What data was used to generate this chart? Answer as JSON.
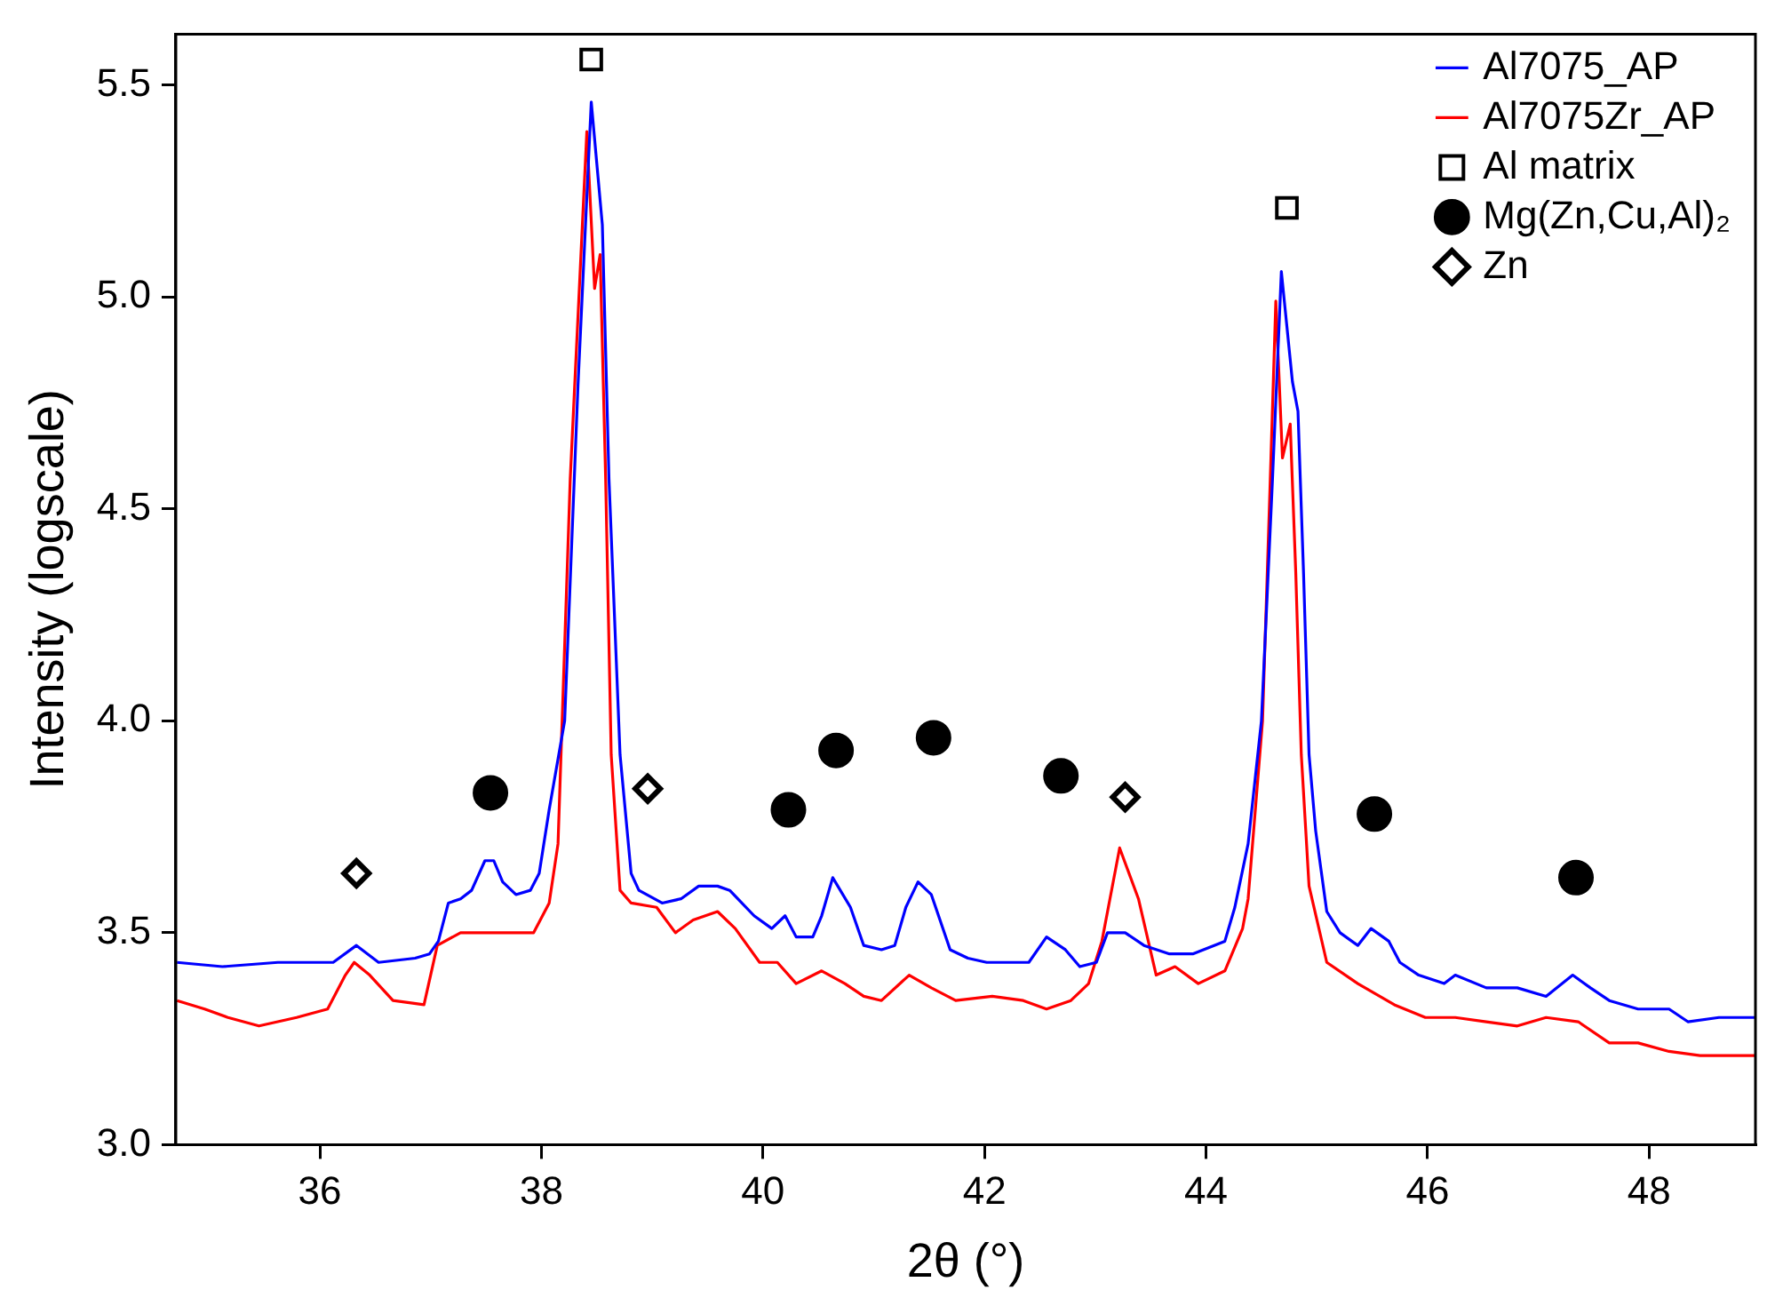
{
  "chart_data": {
    "type": "line",
    "xlabel": "2θ (°)",
    "ylabel": "Intensity (logscale)",
    "xlim": [
      34.7,
      48.96
    ],
    "xticks": [
      36,
      38,
      40,
      42,
      44,
      46,
      48
    ],
    "ylim": [
      3.0,
      5.62
    ],
    "yticks": [
      {
        "value": 3,
        "label": "3.0"
      },
      {
        "value": 3.5,
        "label": "3.5"
      },
      {
        "value": 4,
        "label": "4.0"
      },
      {
        "value": 4.5,
        "label": "4.5"
      },
      {
        "value": 5,
        "label": "5.0"
      },
      {
        "value": 5.5,
        "label": "5.5"
      }
    ],
    "grid": false,
    "legend": "top right",
    "line_style": "solid",
    "series": [
      {
        "name": "Al7075_AP",
        "color": "#0000ff",
        "marker": "none",
        "x": [
          34.71,
          35.12,
          35.62,
          36.12,
          36.33,
          36.53,
          36.86,
          36.99,
          37.07,
          37.16,
          37.27,
          37.37,
          37.49,
          37.57,
          37.65,
          37.77,
          37.9,
          37.98,
          38.07,
          38.21,
          38.33,
          38.45,
          38.55,
          38.61,
          38.71,
          38.81,
          38.88,
          39.09,
          39.26,
          39.42,
          39.59,
          39.7,
          39.92,
          40.08,
          40.2,
          40.3,
          40.45,
          40.53,
          40.63,
          40.79,
          40.91,
          41.07,
          41.19,
          41.29,
          41.4,
          41.52,
          41.69,
          41.85,
          42.02,
          42.18,
          42.4,
          42.56,
          42.73,
          42.86,
          43.01,
          43.11,
          43.27,
          43.44,
          43.67,
          43.88,
          44.17,
          44.26,
          44.38,
          44.5,
          44.6,
          44.68,
          44.78,
          44.83,
          44.88,
          44.93,
          44.99,
          45.09,
          45.21,
          45.37,
          45.49,
          45.65,
          45.75,
          45.92,
          46.15,
          46.25,
          46.53,
          46.81,
          47.07,
          47.31,
          47.47,
          47.64,
          47.9,
          48.18,
          48.35,
          48.63,
          48.79,
          48.96
        ],
        "values": [
          3.43,
          3.42,
          3.43,
          3.43,
          3.47,
          3.43,
          3.44,
          3.45,
          3.48,
          3.57,
          3.58,
          3.6,
          3.67,
          3.67,
          3.62,
          3.59,
          3.6,
          3.64,
          3.79,
          4.0,
          4.79,
          5.46,
          5.17,
          4.57,
          3.92,
          3.64,
          3.6,
          3.57,
          3.58,
          3.61,
          3.61,
          3.6,
          3.54,
          3.51,
          3.54,
          3.49,
          3.49,
          3.54,
          3.63,
          3.56,
          3.47,
          3.46,
          3.47,
          3.56,
          3.62,
          3.59,
          3.46,
          3.44,
          3.43,
          3.43,
          3.43,
          3.49,
          3.46,
          3.42,
          3.43,
          3.5,
          3.5,
          3.47,
          3.45,
          3.45,
          3.48,
          3.56,
          3.71,
          4.0,
          4.57,
          5.06,
          4.8,
          4.73,
          4.35,
          3.92,
          3.74,
          3.55,
          3.5,
          3.47,
          3.51,
          3.48,
          3.43,
          3.4,
          3.38,
          3.4,
          3.37,
          3.37,
          3.35,
          3.4,
          3.37,
          3.34,
          3.32,
          3.32,
          3.29,
          3.3,
          3.3,
          3.3
        ]
      },
      {
        "name": "Al7075Zr_AP",
        "color": "#ff0000",
        "marker": "none",
        "x": [
          34.71,
          34.96,
          35.17,
          35.45,
          35.79,
          36.07,
          36.23,
          36.31,
          36.45,
          36.66,
          36.94,
          37.06,
          37.27,
          37.65,
          37.93,
          38.07,
          38.15,
          38.26,
          38.41,
          38.48,
          38.53,
          38.58,
          38.63,
          38.71,
          38.81,
          39.04,
          39.21,
          39.37,
          39.59,
          39.75,
          39.97,
          40.13,
          40.3,
          40.53,
          40.74,
          40.91,
          41.07,
          41.32,
          41.52,
          41.74,
          42.07,
          42.35,
          42.56,
          42.78,
          42.94,
          43.06,
          43.22,
          43.39,
          43.55,
          43.72,
          43.93,
          44.17,
          44.33,
          44.38,
          44.51,
          44.58,
          44.63,
          44.69,
          44.76,
          44.81,
          44.86,
          44.93,
          45.09,
          45.37,
          45.7,
          45.98,
          46.25,
          46.53,
          46.81,
          47.07,
          47.36,
          47.64,
          47.9,
          48.18,
          48.46,
          48.73,
          48.96
        ],
        "values": [
          3.34,
          3.32,
          3.3,
          3.28,
          3.3,
          3.32,
          3.4,
          3.43,
          3.4,
          3.34,
          3.33,
          3.47,
          3.5,
          3.5,
          3.5,
          3.57,
          3.71,
          4.57,
          5.39,
          5.02,
          5.1,
          4.57,
          3.92,
          3.6,
          3.57,
          3.56,
          3.5,
          3.53,
          3.55,
          3.51,
          3.43,
          3.43,
          3.38,
          3.41,
          3.38,
          3.35,
          3.34,
          3.4,
          3.37,
          3.34,
          3.35,
          3.34,
          3.32,
          3.34,
          3.38,
          3.48,
          3.7,
          3.58,
          3.4,
          3.42,
          3.38,
          3.41,
          3.51,
          3.58,
          4.0,
          4.57,
          4.99,
          4.62,
          4.7,
          4.35,
          3.92,
          3.61,
          3.43,
          3.38,
          3.33,
          3.3,
          3.3,
          3.29,
          3.28,
          3.3,
          3.29,
          3.24,
          3.24,
          3.22,
          3.21,
          3.21,
          3.21
        ]
      },
      {
        "name": "Al matrix",
        "type": "scatter",
        "color": "#000000",
        "marker": "square",
        "x": [
          38.45,
          44.73
        ],
        "values": [
          5.56,
          5.21
        ]
      },
      {
        "name": "Mg(Zn,Cu,Al)₂",
        "type": "scatter",
        "color": "#000000",
        "marker": "circle",
        "x": [
          37.54,
          40.23,
          40.66,
          41.54,
          42.69,
          45.52,
          47.34
        ],
        "values": [
          3.83,
          3.79,
          3.93,
          3.96,
          3.87,
          3.78,
          3.63
        ]
      },
      {
        "name": "Zn",
        "type": "scatter",
        "color": "#000000",
        "marker": "diamond",
        "x": [
          36.33,
          38.96,
          43.27
        ],
        "values": [
          3.64,
          3.84,
          3.82
        ]
      }
    ]
  }
}
